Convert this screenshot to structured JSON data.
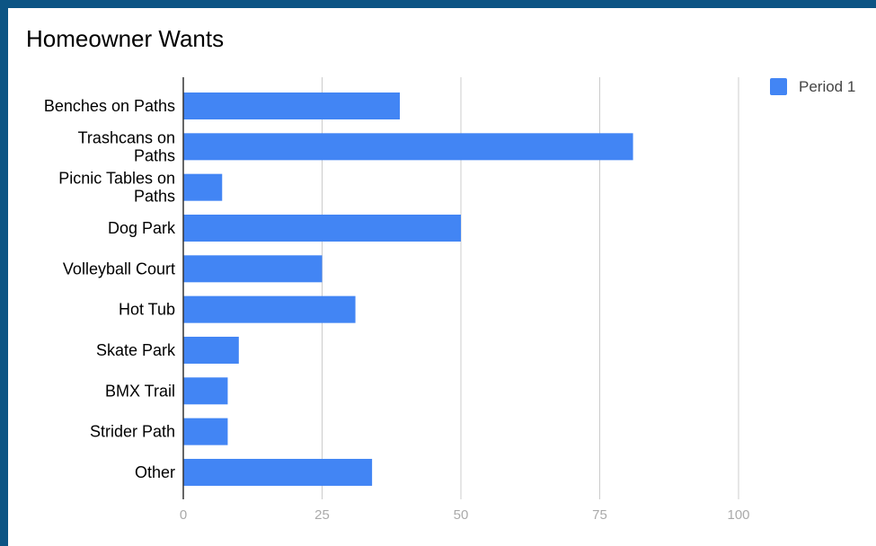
{
  "chart_data": {
    "type": "bar",
    "orientation": "horizontal",
    "title": "Homeowner Wants",
    "categories": [
      "Benches on Paths",
      "Trashcans on Paths",
      "Picnic Tables on Paths",
      "Dog Park",
      "Volleyball Court",
      "Hot Tub",
      "Skate Park",
      "BMX Trail",
      "Strider Path",
      "Other"
    ],
    "category_lines": [
      [
        "Benches on Paths"
      ],
      [
        "Trashcans on",
        "Paths"
      ],
      [
        "Picnic Tables on",
        "Paths"
      ],
      [
        "Dog Park"
      ],
      [
        "Volleyball Court"
      ],
      [
        "Hot Tub"
      ],
      [
        "Skate Park"
      ],
      [
        "BMX Trail"
      ],
      [
        "Strider Path"
      ],
      [
        "Other"
      ]
    ],
    "series": [
      {
        "name": "Period 1",
        "color": "#4285f4",
        "values": [
          39,
          81,
          7,
          50,
          25,
          31,
          10,
          8,
          8,
          34
        ]
      }
    ],
    "xlim": [
      0,
      100
    ],
    "xticks": [
      0,
      25,
      50,
      75,
      100
    ],
    "xtick_labels": [
      "0",
      "25",
      "50",
      "75",
      "100"
    ],
    "grid": true,
    "legend_position": "top-right"
  }
}
